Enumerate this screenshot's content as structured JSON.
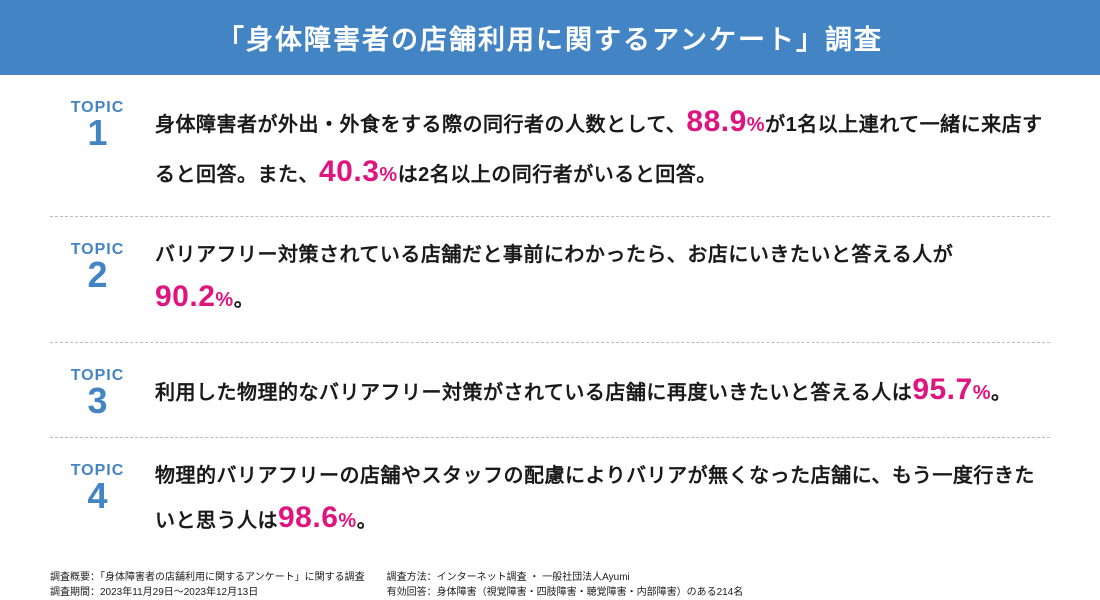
{
  "header": {
    "title": "「身体障害者の店舗利用に関するアンケート」調査"
  },
  "colors": {
    "header_bg": "#4384c5",
    "header_text": "#ffffff",
    "topic_label": "#4384c5",
    "highlight": "#e0147f",
    "body_text": "#1a1a1a",
    "divider": "#bbbbbb"
  },
  "topics": [
    {
      "label_word": "TOPIC",
      "label_number": "1",
      "text_pre1": "身体障害者が外出・外食をする際の同行者の人数として、",
      "stat1_value": "88.9",
      "stat1_pct": "%",
      "text_mid1": "が1名以上連れて一緒に来店すると回答。また、",
      "stat2_value": "40.3",
      "stat2_pct": "%",
      "text_post1": "は2名以上の同行者がいると回答。"
    },
    {
      "label_word": "TOPIC",
      "label_number": "2",
      "text_pre1": "バリアフリー対策されている店舗だと事前にわかったら、お店にいきたいと答える人が",
      "stat1_value": "90.2",
      "stat1_pct": "%",
      "text_post1": "。"
    },
    {
      "label_word": "TOPIC",
      "label_number": "3",
      "text_pre1": "利用した物理的なバリアフリー対策がされている店舗に再度いきたいと答える人は",
      "stat1_value": "95.7",
      "stat1_pct": "%",
      "text_post1": "。"
    },
    {
      "label_word": "TOPIC",
      "label_number": "4",
      "text_pre1": "物理的バリアフリーの店舗やスタッフの配慮によりバリアが無くなった店舗に、もう一度行きたいと思う人は",
      "stat1_value": "98.6",
      "stat1_pct": "%",
      "text_post1": "。"
    }
  ],
  "footer": {
    "col1_line1": "調査概要：「身体障害者の店舗利用に関するアンケート」に関する調査",
    "col1_line2": "調査期間：2023年11月29日～2023年12月13日",
    "col2_line1": "調査方法：インターネット調査 ・ 一般社団法人Ayumi",
    "col2_line2": "有効回答：身体障害（視覚障害・四肢障害・聴覚障害・内部障害）のある214名"
  }
}
